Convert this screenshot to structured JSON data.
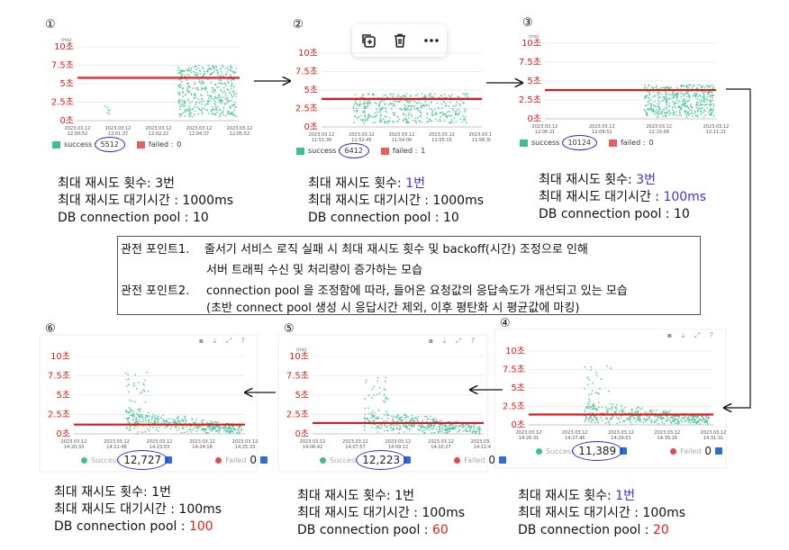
{
  "panels": [
    {
      "num": "①",
      "ylabels": [
        "10초",
        "7.5초",
        "5초",
        "2.5초",
        "0초"
      ],
      "unit": "(ms)",
      "xlabels": [
        "2023.03.12\n12:00:52",
        "2023.03.12\n12:01:37",
        "2023.03.12\n12:02:22",
        "2023.03.12\n12:04:37",
        "2023.03.12\n12:05:52"
      ],
      "success_label": "success :",
      "success_value": "5512",
      "failed_label": "failed :",
      "failed_value": "0",
      "caption": [
        "최대 재시도 횟수: 3번",
        "최대 재시도 대기시간 : 1000ms",
        "DB connection pool : 10"
      ]
    },
    {
      "num": "②",
      "ylabels": [
        "10초",
        "7.5초",
        "5초",
        "2.5초",
        "0초"
      ],
      "unit": "",
      "xlabels": [
        "2023.03.12\n11:51:30",
        "2023.03.12\n11:52:45",
        "2023.03.12\n11:54:00",
        "2023.03.12\n11:55:15",
        "2023.03.12\n11:56:30"
      ],
      "success_label": "success :",
      "success_value": "6412",
      "failed_label": "failed :",
      "failed_value": "1",
      "caption_a": "최대 재시도 횟수: ",
      "caption_a_val": "1번",
      "caption": [
        "최대 재시도 대기시간 : 1000ms",
        "DB connection pool : 10"
      ]
    },
    {
      "num": "③",
      "ylabels": [
        "10초",
        "7.5초",
        "5초",
        "2.5초",
        "0초"
      ],
      "unit": "(ms)",
      "xlabels": [
        "2023.03.12\n12:06:21",
        "2023.03.12\n12:08:51",
        "2023.03.12\n12:10:06",
        "2023.03.12\n12:11:21"
      ],
      "success_label": "success :",
      "success_value": "10124",
      "failed_label": "failed :",
      "failed_value": "0",
      "caption_a": "최대 재시도 횟수: ",
      "caption_a_val": "3번",
      "caption_b": "최대 재시도 대기시간 : ",
      "caption_b_val": "100ms",
      "caption": [
        "DB connection pool : 10"
      ]
    },
    {
      "num": "④",
      "ylabels": [
        "10초",
        "7.5초",
        "5초",
        "2.5초",
        "0초"
      ],
      "xlabels": [
        "2023.03.12\n14:26:31",
        "2023.03.12\n14:27:46",
        "2023.03.12\n14:29:01",
        "2023.03.12\n14:30:16",
        "2023.03.12\n14:31:31"
      ],
      "success_label": "Success",
      "success_value": "11,389",
      "failed_label": "Failed",
      "failed_value": "0",
      "caption_a": "최대 재시도 횟수: ",
      "caption_a_val": "1번",
      "caption": [
        "최대 재시도 대기시간 : 100ms"
      ],
      "caption_c": "DB connection pool : ",
      "caption_c_val": "20"
    },
    {
      "num": "⑤",
      "ylabels": [
        "10초",
        "7.5초",
        "5초",
        "2.5초",
        "0초"
      ],
      "unit": "(ms)",
      "xlabels": [
        "2023.03.12\n14:06:42",
        "2023.03.12\n14:07:57",
        "2023.03.12\n14:09:12",
        "2023.03.12\n14:10:27",
        "2023.03.12\n14:11:42"
      ],
      "success_label": "Success",
      "success_value": "12,223",
      "failed_label": "Failed",
      "failed_value": "0",
      "caption": [
        "최대 재시도 횟수: 1번",
        "최대 재시도 대기시간 : 100ms"
      ],
      "caption_c": "DB connection pool : ",
      "caption_c_val": "60"
    },
    {
      "num": "⑥",
      "ylabels": [
        "10초",
        "7.5초",
        "5초",
        "2.5초",
        "0초"
      ],
      "xlabels": [
        "2023.03.12\n14:20:33",
        "2023.03.12\n14:21:48",
        "2023.03.12\n14:23:03",
        "2023.03.12\n14:24:18",
        "2023.03.12\n14:25:33"
      ],
      "success_label": "Success",
      "success_value": "12,727",
      "failed_label": "Failed",
      "failed_value": "0",
      "caption": [
        "최대 재시도 횟수: 1번",
        "최대 재시도 대기시간 : 100ms"
      ],
      "caption_c": "DB connection pool : ",
      "caption_c_val": "100"
    }
  ],
  "points": {
    "p1_label": "관전 포인트1.",
    "p1_line1": "줄서기 서비스 로직 실패 시 최대 재시도 횟수 및 backoff(시간) 조정으로 인해",
    "p1_line2": "서버 트래픽 수신 및 처리량이 증가하는 모습",
    "p2_label": "관전 포인트2.",
    "p2_line1": "connection pool 을 조정함에 따라, 들어온 요청값의 응답속도가 개선되고 있는 모습",
    "p2_line2": "(초반 connect pool 생성 시 응답시간 제외, 이후 평탄화 시 평균값에 마킹)"
  },
  "colors": {
    "dots": "#3cbf95",
    "threshold": "#e8131b",
    "axis_label": "#e0201a",
    "oval": "#2a2ad8",
    "accent_blue": "#3b34e0"
  },
  "toolbar": {
    "icons": [
      "copy-add-icon",
      "trash-icon",
      "more-icon"
    ]
  }
}
